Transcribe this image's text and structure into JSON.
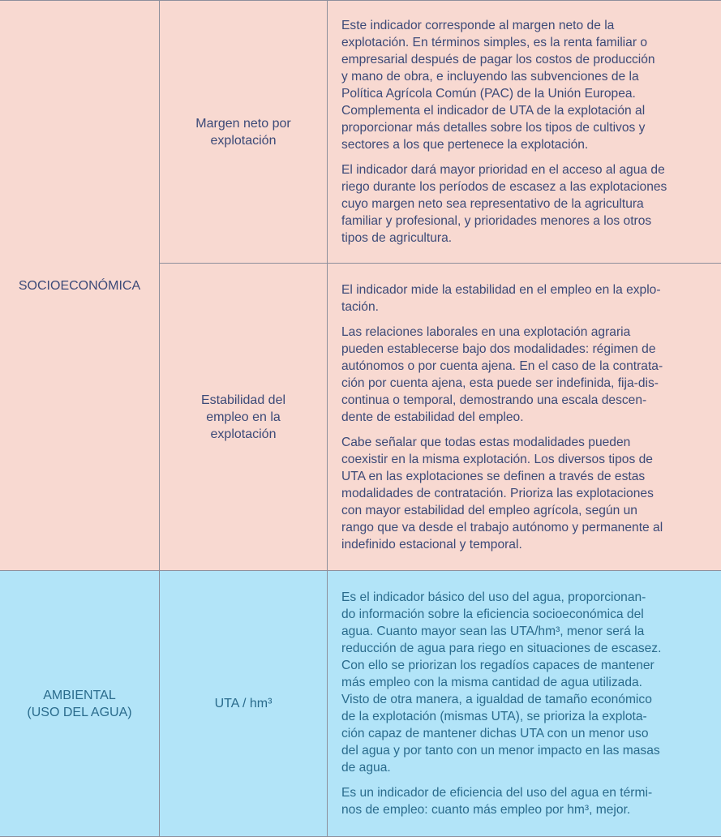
{
  "colors": {
    "socioeconomic_bg": "#f8d9d1",
    "environmental_bg": "#b2e4f8",
    "socioeconomic_text": "#3c4a78",
    "environmental_text": "#2a6b8c"
  },
  "categories": [
    {
      "label": "SOCIOECONÓMICA"
    },
    {
      "label_lines": [
        "AMBIENTAL",
        "(USO DEL AGUA)"
      ]
    }
  ],
  "indicators": [
    {
      "name_lines": [
        "Margen neto por",
        "explotación"
      ],
      "paragraphs": [
        [
          "Este indicador corresponde al margen neto de la",
          "explotación. En términos simples, es la renta familiar o",
          "empresarial después de pagar los costos de producción",
          "y mano de obra, e incluyendo las subvenciones de la",
          "Política Agrícola Común (PAC) de la Unión Europea.",
          "Complementa el indicador de UTA de la explotación al",
          "proporcionar más detalles sobre los tipos de cultivos y",
          "sectores a los que pertenece la explotación."
        ],
        [
          "El indicador dará mayor prioridad en el acceso al agua de",
          "riego durante los períodos de escasez a las explotaciones",
          "cuyo margen neto sea representativo de la agricultura",
          "familiar y profesional, y prioridades menores a los otros",
          "tipos de agricultura."
        ]
      ]
    },
    {
      "name_lines": [
        "Estabilidad del",
        "empleo en la",
        "explotación"
      ],
      "paragraphs": [
        [
          "El indicador mide la estabilidad en el empleo en la explo-",
          "tación."
        ],
        [
          "Las relaciones laborales en una explotación agraria",
          "pueden establecerse bajo dos modalidades: régimen de",
          "autónomos o por cuenta ajena. En el caso de la contrata-",
          "ción por cuenta ajena, esta puede ser indefinida, fija-dis-",
          "continua o temporal, demostrando una escala descen-",
          "dente de estabilidad del empleo."
        ],
        [
          "Cabe señalar que todas estas modalidades pueden",
          "coexistir en la misma explotación. Los diversos tipos de",
          "UTA en las explotaciones se definen a través de estas",
          "modalidades de contratación. Prioriza las explotaciones",
          "con mayor estabilidad del empleo agrícola, según un",
          "rango que va desde el trabajo autónomo y permanente al",
          "indefinido estacional y temporal."
        ]
      ]
    },
    {
      "name": "UTA / hm³",
      "paragraphs": [
        [
          "Es el indicador básico del uso del agua, proporcionan-",
          "do información sobre la eficiencia socioeconómica del",
          "agua. Cuanto mayor sean las UTA/hm³, menor será la",
          "reducción de agua para riego en situaciones de escasez.",
          "Con ello se priorizan los regadíos capaces de mantener",
          "más empleo con la misma cantidad de agua utilizada.",
          "Visto de otra manera, a igualdad de tamaño económico",
          "de la explotación (mismas UTA), se prioriza la explota-",
          "ción capaz de mantener dichas UTA con un menor uso",
          "del agua y por tanto con un menor impacto en las masas",
          "de agua."
        ],
        [
          "Es un indicador de eficiencia del uso del agua en térmi-",
          "nos de empleo: cuanto más empleo por hm³, mejor."
        ]
      ]
    }
  ]
}
